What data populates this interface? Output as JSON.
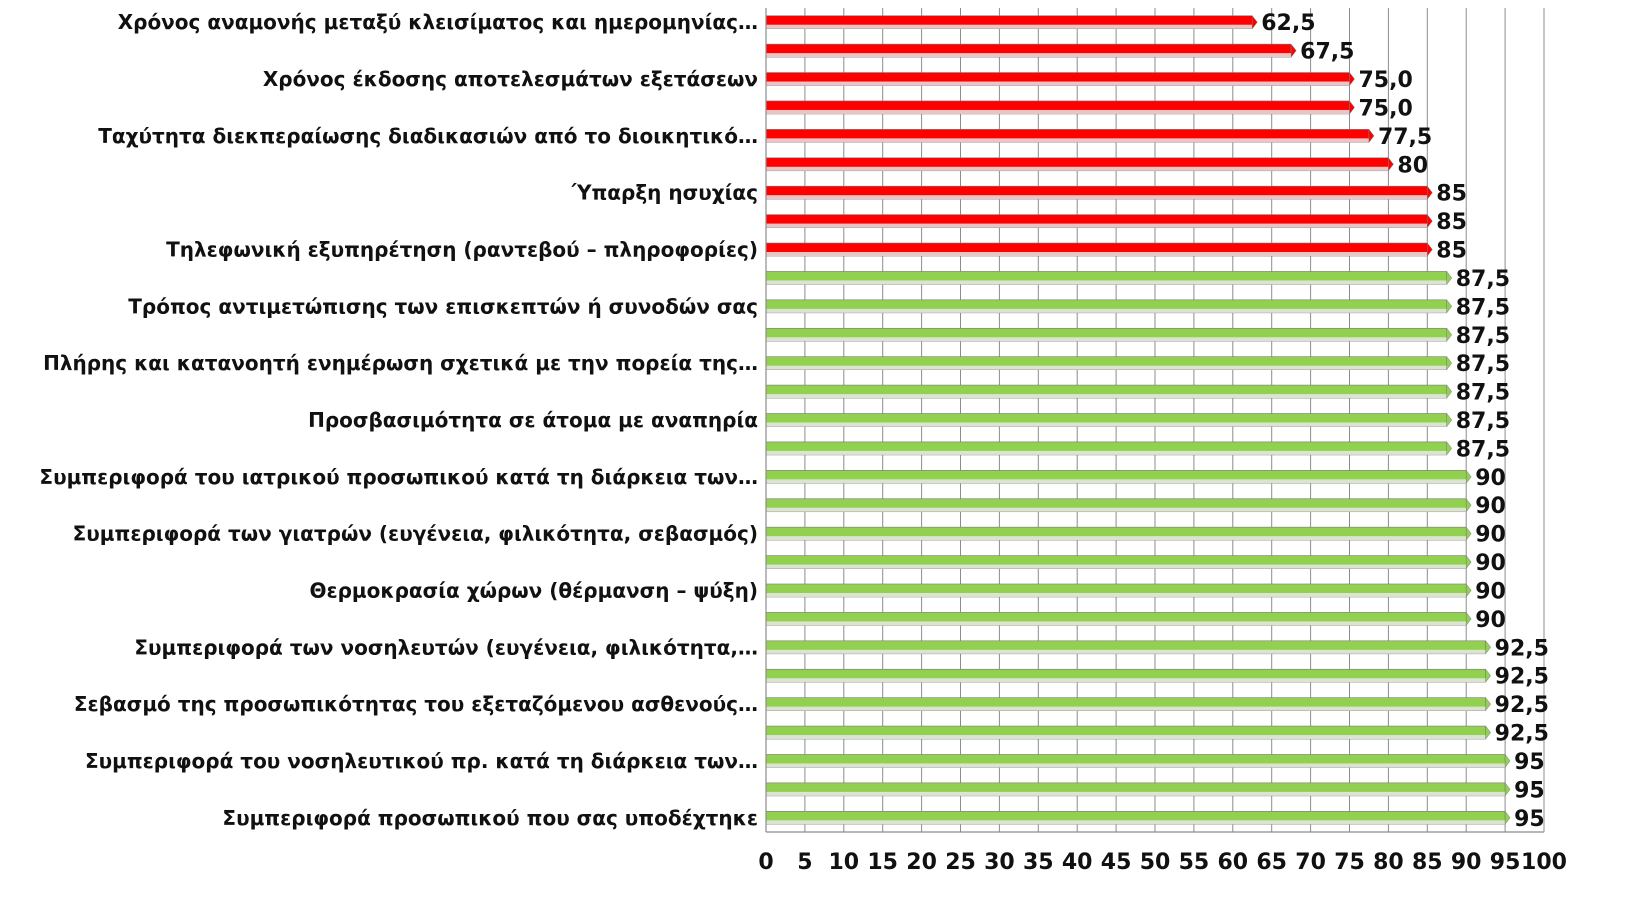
{
  "chart_data": {
    "type": "bar",
    "orientation": "horizontal",
    "categories": [
      "Χρόνος αναμονής μεταξύ κλεισίματος και ημερομηνίας…",
      "",
      "Χρόνος έκδοσης αποτελεσμάτων  εξετάσεων",
      "",
      "Ταχύτητα διεκπεραίωσης διαδικασιών από το διοικητικό…",
      "",
      "Ύπαρξη ησυχίας",
      "",
      "Τηλεφωνική εξυπηρέτηση (ραντεβού – πληροφορίες)",
      "",
      "Τρόπος αντιμετώπισης των επισκεπτών ή συνοδών σας",
      "",
      "Πλήρης και κατανοητή ενημέρωση σχετικά με την πορεία της…",
      "",
      "Προσβασιμότητα σε άτομα με αναπηρία",
      "",
      "Συμπεριφορά του ιατρικού προσωπικού κατά τη διάρκεια των…",
      "",
      "Συμπεριφορά των γιατρών (ευγένεια, φιλικότητα, σεβασμός)",
      "",
      "Θερμοκρασία χώρων (θέρμανση – ψύξη)",
      "",
      "Συμπεριφορά των νοσηλευτών (ευγένεια, φιλικότητα,…",
      "",
      "Σεβασμό της προσωπικότητας του εξεταζόμενου ασθενούς…",
      "",
      "Συμπεριφορά του νοσηλευτικού πρ. κατά τη διάρκεια των…",
      "",
      "Συμπεριφορά προσωπικού που σας υποδέχτηκε"
    ],
    "values": [
      62.5,
      67.5,
      75.0,
      75.0,
      77.5,
      80,
      85,
      85,
      85,
      87.5,
      87.5,
      87.5,
      87.5,
      87.5,
      87.5,
      87.5,
      90,
      90,
      90,
      90,
      90,
      90,
      92.5,
      92.5,
      92.5,
      92.5,
      95,
      95,
      95
    ],
    "value_labels": [
      "62,5",
      "67,5",
      "75,0",
      "75,0",
      "77,5",
      "80",
      "85",
      "85",
      "85",
      "87,5",
      "87,5",
      "87,5",
      "87,5",
      "87,5",
      "87,5",
      "87,5",
      "90",
      "90",
      "90",
      "90",
      "90",
      "90",
      "92,5",
      "92,5",
      "92,5",
      "92,5",
      "95",
      "95",
      "95"
    ],
    "bar_colors": [
      "#ff0000",
      "#ff0000",
      "#ff0000",
      "#ff0000",
      "#ff0000",
      "#ff0000",
      "#ff0000",
      "#ff0000",
      "#ff0000",
      "#92d050",
      "#92d050",
      "#92d050",
      "#92d050",
      "#92d050",
      "#92d050",
      "#92d050",
      "#92d050",
      "#92d050",
      "#92d050",
      "#92d050",
      "#92d050",
      "#92d050",
      "#92d050",
      "#92d050",
      "#92d050",
      "#92d050",
      "#92d050",
      "#92d050",
      "#92d050"
    ],
    "xlim": [
      0,
      100
    ],
    "xticks": [
      0,
      5,
      10,
      15,
      20,
      25,
      30,
      35,
      40,
      45,
      50,
      55,
      60,
      65,
      70,
      75,
      80,
      85,
      90,
      95,
      100
    ],
    "grid": true,
    "title": "",
    "xlabel": "",
    "ylabel": ""
  }
}
